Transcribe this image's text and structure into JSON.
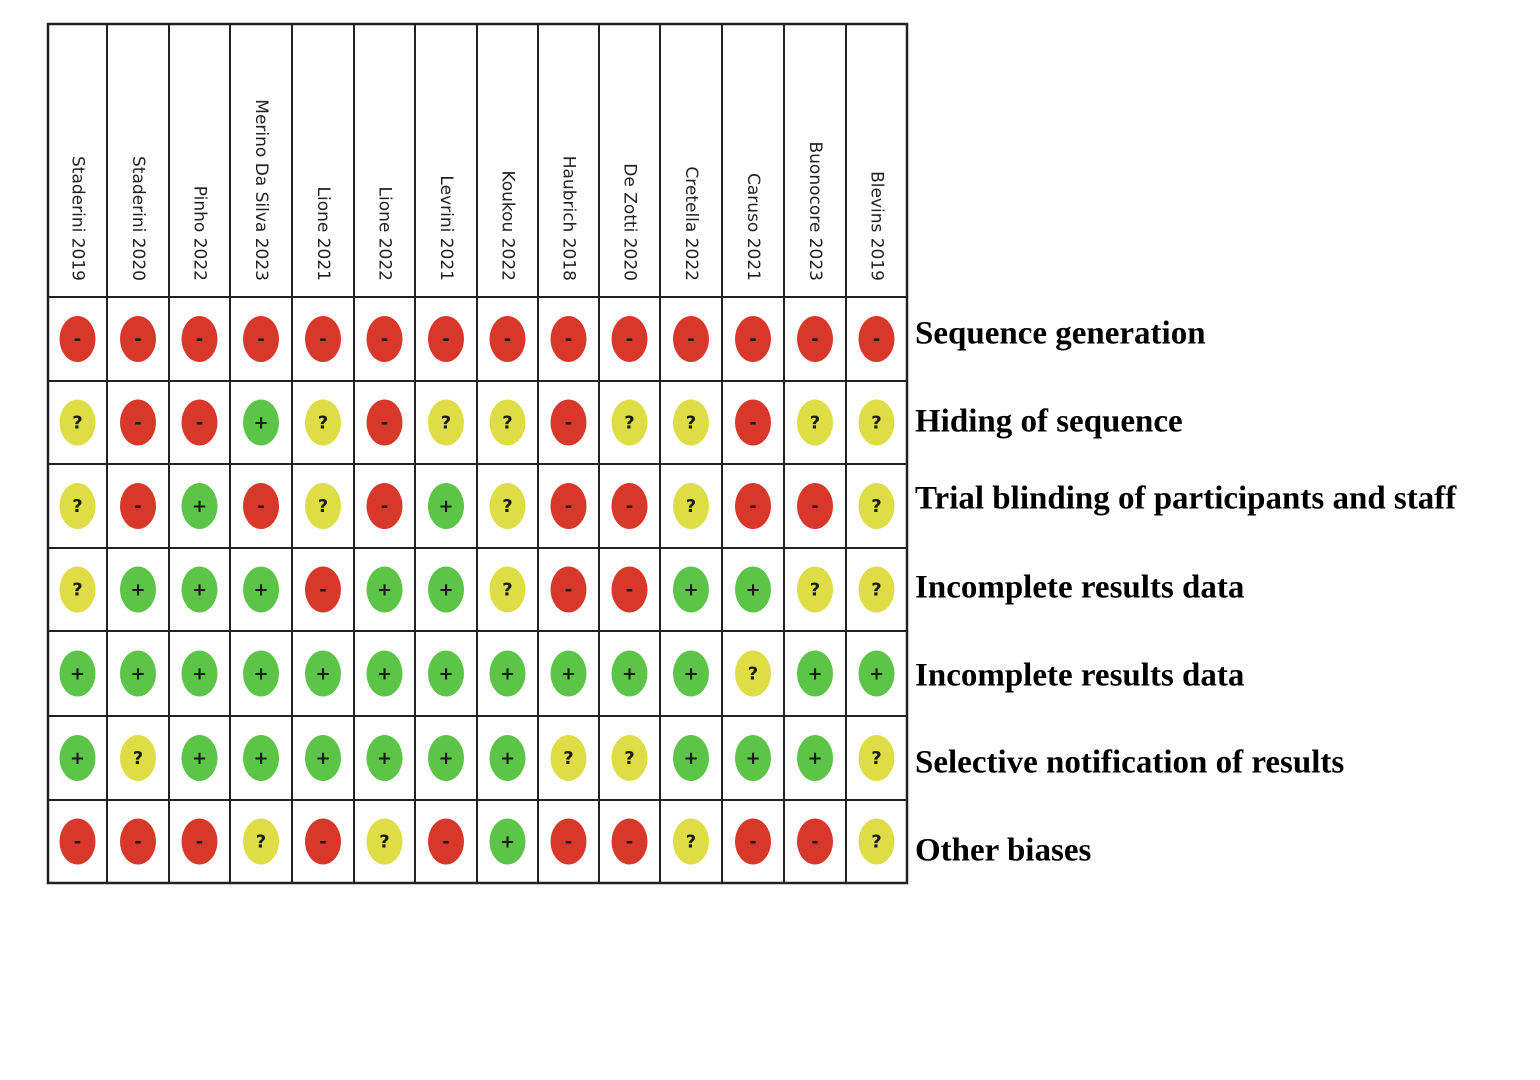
{
  "colors": {
    "high": "#d7382a",
    "unclear": "#dedd45",
    "low": "#5cc447",
    "background": "#ffffff",
    "lines": "#222222"
  },
  "symbols": {
    "high": "-",
    "unclear": "?",
    "low": "+"
  },
  "chart_data": {
    "type": "table",
    "title": "",
    "studies": [
      "Staderini 2019",
      "Staderini 2020",
      "Pinho 2022",
      "Merino Da Silva 2023",
      "Lione 2021",
      "Lione 2022",
      "Levrini 2021",
      "Koukou 2022",
      "Haubrich 2018",
      "De Zotti 2020",
      "Cretella 2022",
      "Caruso 2021",
      "Buonocore 2023",
      "Blevins 2019"
    ],
    "domains": [
      "Sequence generation",
      "Hiding of sequence",
      "Trial blinding of participants and staff",
      "Incomplete results data",
      "Incomplete results data",
      "Selective notification of results",
      "Other biases"
    ],
    "judgements": [
      [
        "high",
        "high",
        "high",
        "high",
        "high",
        "high",
        "high",
        "high",
        "high",
        "high",
        "high",
        "high",
        "high",
        "high"
      ],
      [
        "unclear",
        "high",
        "high",
        "low",
        "unclear",
        "high",
        "unclear",
        "unclear",
        "high",
        "unclear",
        "unclear",
        "high",
        "unclear",
        "unclear"
      ],
      [
        "unclear",
        "high",
        "low",
        "high",
        "unclear",
        "high",
        "low",
        "unclear",
        "high",
        "high",
        "unclear",
        "high",
        "high",
        "unclear"
      ],
      [
        "unclear",
        "low",
        "low",
        "low",
        "high",
        "low",
        "low",
        "unclear",
        "high",
        "high",
        "low",
        "low",
        "unclear",
        "unclear"
      ],
      [
        "low",
        "low",
        "low",
        "low",
        "low",
        "low",
        "low",
        "low",
        "low",
        "low",
        "low",
        "unclear",
        "low",
        "low"
      ],
      [
        "low",
        "unclear",
        "low",
        "low",
        "low",
        "low",
        "low",
        "low",
        "unclear",
        "unclear",
        "low",
        "low",
        "low",
        "unclear"
      ],
      [
        "high",
        "high",
        "high",
        "unclear",
        "high",
        "unclear",
        "high",
        "low",
        "high",
        "high",
        "unclear",
        "high",
        "high",
        "unclear"
      ]
    ]
  }
}
